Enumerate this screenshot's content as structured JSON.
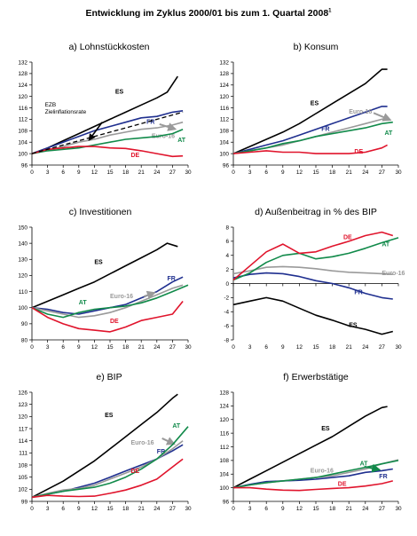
{
  "title": "Entwicklung im Zyklus 2000/01 bis zum 1. Quartal 2008",
  "title_note": "1",
  "colors": {
    "ES": "#000000",
    "FR": "#1f2f8f",
    "Euro-16": "#9a9a9a",
    "AT": "#118a4a",
    "DE": "#e0142c",
    "EZB": "#000000"
  },
  "chart_data": [
    {
      "type": "line",
      "title": "a) Lohnstückkosten",
      "xlim": [
        0,
        30
      ],
      "xticks": [
        0,
        3,
        6,
        9,
        12,
        15,
        18,
        21,
        24,
        27,
        30
      ],
      "ylim": [
        96,
        132
      ],
      "yticks": [
        96,
        100,
        104,
        108,
        112,
        116,
        120,
        124,
        128,
        132
      ],
      "annotation": {
        "lines": [
          "EZB",
          "Zielinflationsrate"
        ],
        "arrow": [
          11,
          104.8
        ]
      },
      "series": [
        {
          "name": "ES",
          "x": [
            0,
            3,
            6,
            9,
            12,
            15,
            18,
            21,
            24,
            26,
            28
          ],
          "y": [
            100,
            102,
            104.5,
            107,
            109.5,
            112,
            114.5,
            117,
            119.5,
            121.5,
            127
          ]
        },
        {
          "name": "FR",
          "x": [
            0,
            3,
            6,
            9,
            12,
            15,
            18,
            21,
            24,
            27,
            29
          ],
          "y": [
            100,
            102,
            104,
            106,
            108,
            109.5,
            111,
            112.5,
            113,
            114.5,
            115
          ]
        },
        {
          "name": "Euro-16",
          "x": [
            0,
            3,
            6,
            9,
            12,
            15,
            18,
            21,
            24,
            27,
            29
          ],
          "y": [
            100,
            101.2,
            102.5,
            104,
            105,
            106.5,
            107.5,
            108.5,
            109,
            110,
            111
          ]
        },
        {
          "name": "AT",
          "x": [
            0,
            3,
            6,
            9,
            12,
            15,
            18,
            21,
            24,
            27,
            29
          ],
          "y": [
            100,
            101,
            101.5,
            102,
            103,
            104,
            105,
            105.5,
            106,
            107,
            108.5
          ]
        },
        {
          "name": "DE",
          "x": [
            0,
            3,
            6,
            9,
            12,
            15,
            18,
            21,
            24,
            27,
            29
          ],
          "y": [
            100,
            101.5,
            102,
            102.5,
            102.5,
            102,
            101.8,
            101,
            100,
            99,
            99.2
          ]
        },
        {
          "name": "EZB",
          "dashed": true,
          "x": [
            0,
            29
          ],
          "y": [
            100,
            114.5
          ]
        }
      ]
    },
    {
      "type": "line",
      "title": "b) Konsum",
      "xlim": [
        0,
        30
      ],
      "xticks": [
        0,
        3,
        6,
        9,
        12,
        15,
        18,
        21,
        24,
        27,
        30
      ],
      "ylim": [
        96,
        132
      ],
      "yticks": [
        96,
        100,
        104,
        108,
        112,
        116,
        120,
        124,
        128,
        132
      ],
      "series": [
        {
          "name": "ES",
          "x": [
            0,
            3,
            6,
            9,
            12,
            15,
            18,
            21,
            24,
            27,
            28
          ],
          "y": [
            100,
            102.5,
            105,
            107.5,
            110.5,
            114,
            117.5,
            121,
            124.5,
            129.5,
            129.5
          ]
        },
        {
          "name": "FR",
          "x": [
            0,
            3,
            6,
            9,
            12,
            15,
            18,
            21,
            24,
            27,
            28
          ],
          "y": [
            100,
            101.5,
            103,
            104.5,
            106.5,
            108.5,
            110.5,
            112.5,
            114.5,
            116.5,
            116.5
          ]
        },
        {
          "name": "Euro-16",
          "x": [
            0,
            3,
            6,
            9,
            12,
            15,
            18,
            21,
            24,
            27,
            28
          ],
          "y": [
            100,
            101,
            102,
            103,
            104.5,
            106,
            107.5,
            109,
            110.5,
            112,
            112.5
          ]
        },
        {
          "name": "AT",
          "x": [
            0,
            3,
            6,
            9,
            12,
            15,
            18,
            21,
            24,
            27,
            29
          ],
          "y": [
            100,
            101,
            102,
            103.5,
            104.5,
            106,
            107,
            108,
            109,
            110.5,
            111
          ]
        },
        {
          "name": "DE",
          "x": [
            0,
            3,
            6,
            9,
            12,
            15,
            18,
            21,
            24,
            27,
            28
          ],
          "y": [
            100,
            100.5,
            101,
            100.5,
            100.5,
            100,
            100,
            100,
            100.5,
            102,
            103
          ]
        }
      ]
    },
    {
      "type": "line",
      "title": "c) Investitionen",
      "xlim": [
        0,
        30
      ],
      "xticks": [
        0,
        3,
        6,
        9,
        12,
        15,
        18,
        21,
        24,
        27,
        30
      ],
      "ylim": [
        80,
        150
      ],
      "yticks": [
        80,
        90,
        100,
        110,
        120,
        130,
        140,
        150
      ],
      "series": [
        {
          "name": "ES",
          "x": [
            0,
            3,
            6,
            9,
            12,
            15,
            18,
            21,
            24,
            26,
            28
          ],
          "y": [
            100,
            104,
            108,
            112,
            116,
            121,
            126,
            131,
            136,
            140,
            138
          ]
        },
        {
          "name": "FR",
          "x": [
            0,
            3,
            6,
            9,
            12,
            15,
            18,
            21,
            24,
            27,
            29
          ],
          "y": [
            100,
            99,
            97,
            96,
            98,
            100,
            102,
            106,
            110,
            116,
            119
          ]
        },
        {
          "name": "Euro-16",
          "x": [
            0,
            3,
            6,
            9,
            12,
            15,
            18,
            21,
            24,
            27,
            29
          ],
          "y": [
            100,
            98,
            96,
            94,
            95,
            97,
            100,
            104,
            108,
            112,
            114
          ]
        },
        {
          "name": "AT",
          "x": [
            0,
            3,
            6,
            9,
            12,
            15,
            18,
            21,
            24,
            27,
            30
          ],
          "y": [
            100,
            96,
            94,
            97,
            99,
            100,
            101,
            103,
            106,
            110,
            114
          ]
        },
        {
          "name": "DE",
          "x": [
            0,
            3,
            6,
            9,
            12,
            15,
            18,
            21,
            24,
            27,
            29
          ],
          "y": [
            100,
            94,
            90,
            87,
            86,
            85,
            88,
            92,
            94,
            96,
            104
          ]
        }
      ]
    },
    {
      "type": "line",
      "title": "d) Außenbeitrag in % des BIP",
      "xlim": [
        0,
        30
      ],
      "xticks": [
        0,
        3,
        6,
        9,
        12,
        15,
        18,
        21,
        24,
        27,
        30
      ],
      "ylim": [
        -8,
        8
      ],
      "yticks": [
        -8,
        -6,
        -4,
        -2,
        0,
        2,
        4,
        6,
        8
      ],
      "series": [
        {
          "name": "ES",
          "x": [
            0,
            3,
            6,
            9,
            12,
            15,
            18,
            21,
            24,
            27,
            29
          ],
          "y": [
            -3,
            -2.5,
            -2,
            -2.5,
            -3.5,
            -4.5,
            -5.2,
            -6,
            -6.5,
            -7.2,
            -6.8
          ]
        },
        {
          "name": "FR",
          "x": [
            0,
            3,
            6,
            9,
            12,
            15,
            18,
            21,
            24,
            27,
            29
          ],
          "y": [
            0.8,
            1.3,
            1.5,
            1.4,
            1,
            0.4,
            0,
            -0.6,
            -1.4,
            -2,
            -2.2
          ]
        },
        {
          "name": "Euro-16",
          "x": [
            0,
            3,
            6,
            9,
            12,
            15,
            18,
            21,
            24,
            27,
            29
          ],
          "y": [
            1.4,
            1.8,
            2.3,
            2.4,
            2.3,
            2.1,
            1.8,
            1.6,
            1.5,
            1.4,
            1.3
          ]
        },
        {
          "name": "AT",
          "x": [
            0,
            3,
            6,
            9,
            12,
            15,
            18,
            21,
            24,
            27,
            30
          ],
          "y": [
            0.5,
            1.5,
            3,
            4,
            4.3,
            3.5,
            3.8,
            4.3,
            5,
            5.8,
            6.5
          ]
        },
        {
          "name": "DE",
          "x": [
            0,
            3,
            6,
            9,
            12,
            15,
            18,
            21,
            24,
            27,
            29
          ],
          "y": [
            0.5,
            2.5,
            4.5,
            5.6,
            4.3,
            4.5,
            5.3,
            6,
            6.8,
            7.3,
            6.8
          ]
        }
      ]
    },
    {
      "type": "line",
      "title": "e) BIP",
      "xlim": [
        0,
        30
      ],
      "xticks": [
        0,
        3,
        6,
        9,
        12,
        15,
        18,
        21,
        24,
        27,
        30
      ],
      "ylim": [
        99,
        126
      ],
      "yticks": [
        99,
        102,
        105,
        108,
        111,
        114,
        117,
        120,
        123,
        126
      ],
      "series": [
        {
          "name": "ES",
          "x": [
            0,
            3,
            6,
            9,
            12,
            15,
            18,
            21,
            24,
            27,
            28
          ],
          "y": [
            100,
            102,
            104,
            106.5,
            109,
            112,
            115,
            118,
            121,
            124.5,
            125.5
          ]
        },
        {
          "name": "FR",
          "x": [
            0,
            3,
            6,
            9,
            12,
            15,
            18,
            21,
            24,
            27,
            29
          ],
          "y": [
            100,
            100.8,
            101.5,
            102.5,
            103.5,
            105,
            106.5,
            108,
            109.5,
            111.5,
            113
          ]
        },
        {
          "name": "Euro-16",
          "x": [
            0,
            3,
            6,
            9,
            12,
            15,
            18,
            21,
            24,
            27,
            29
          ],
          "y": [
            100,
            101,
            101.8,
            102.2,
            103,
            104.5,
            106,
            107.5,
            109.5,
            112,
            114
          ]
        },
        {
          "name": "AT",
          "x": [
            0,
            3,
            6,
            9,
            12,
            15,
            18,
            21,
            24,
            27,
            30
          ],
          "y": [
            100,
            100.8,
            101.5,
            102,
            102.5,
            103.5,
            105,
            107,
            109.5,
            113,
            117.5
          ]
        },
        {
          "name": "DE",
          "x": [
            0,
            3,
            6,
            9,
            12,
            15,
            18,
            21,
            24,
            27,
            29
          ],
          "y": [
            100,
            100.5,
            100.3,
            100.2,
            100.3,
            101,
            101.8,
            103,
            104.5,
            107.5,
            109.5
          ]
        }
      ]
    },
    {
      "type": "line",
      "title": "f) Erwerbstätige",
      "xlim": [
        0,
        30
      ],
      "xticks": [
        0,
        3,
        6,
        9,
        12,
        15,
        18,
        21,
        24,
        27,
        30
      ],
      "ylim": [
        96,
        128
      ],
      "yticks": [
        96,
        100,
        104,
        108,
        112,
        116,
        120,
        124,
        128
      ],
      "series": [
        {
          "name": "ES",
          "x": [
            0,
            3,
            6,
            9,
            12,
            15,
            18,
            21,
            24,
            27,
            28
          ],
          "y": [
            100,
            102.5,
            105,
            107.5,
            110,
            112.5,
            115,
            118,
            121,
            123.5,
            123.8
          ]
        },
        {
          "name": "FR",
          "x": [
            0,
            3,
            6,
            9,
            12,
            15,
            18,
            21,
            24,
            27,
            29
          ],
          "y": [
            100,
            101,
            101.8,
            102,
            102.2,
            102.5,
            103,
            103.5,
            104.5,
            105,
            105.5
          ]
        },
        {
          "name": "Euro-16",
          "x": [
            0,
            3,
            6,
            9,
            12,
            15,
            18,
            21,
            24,
            27,
            30
          ],
          "y": [
            100,
            100.8,
            101.5,
            102,
            102.5,
            103,
            103.5,
            104.5,
            105.5,
            107,
            108.2
          ]
        },
        {
          "name": "AT",
          "x": [
            0,
            3,
            6,
            9,
            12,
            15,
            18,
            21,
            24,
            27,
            30
          ],
          "y": [
            100,
            100.8,
            101.5,
            102,
            102.5,
            103,
            104,
            105,
            106,
            107,
            108
          ]
        },
        {
          "name": "DE",
          "x": [
            0,
            3,
            6,
            9,
            12,
            15,
            18,
            21,
            24,
            27,
            29
          ],
          "y": [
            100,
            100,
            99.6,
            99.3,
            99.2,
            99.5,
            99.8,
            100,
            100.5,
            101.2,
            102
          ]
        }
      ]
    }
  ]
}
